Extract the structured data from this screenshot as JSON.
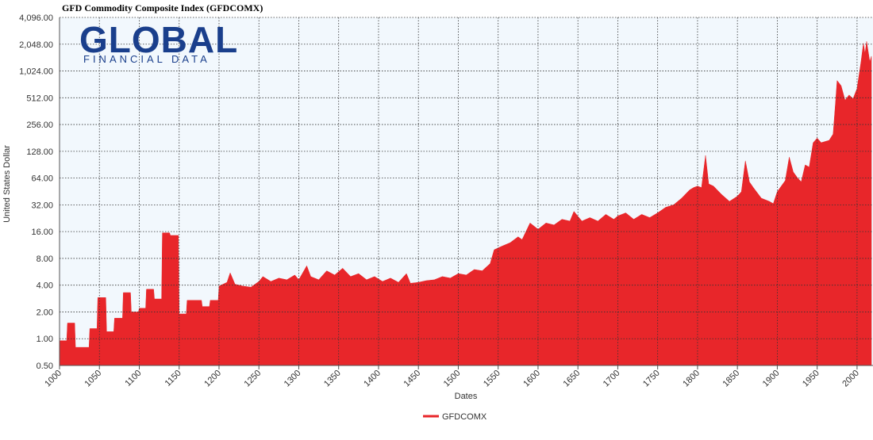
{
  "logo": {
    "name": "GLOBAL",
    "subtitle": "FINANCIAL DATA"
  },
  "chart_data": {
    "type": "area",
    "title": "GFD Commodity Composite Index (GFDCOMX)",
    "x_label": "Dates",
    "y_label": "United States Dollar",
    "log_scale": "y",
    "grid": true,
    "legend": "bottom",
    "xlim": [
      1000,
      2020
    ],
    "xticks": [
      1000,
      1050,
      1100,
      1150,
      1200,
      1250,
      1300,
      1350,
      1400,
      1450,
      1500,
      1550,
      1600,
      1650,
      1700,
      1750,
      1800,
      1850,
      1900,
      1950,
      2000
    ],
    "ylim": [
      0.5,
      4096
    ],
    "yticks": [
      {
        "value": 0.5,
        "label": "0.50"
      },
      {
        "value": 1,
        "label": "1.00"
      },
      {
        "value": 2,
        "label": "2.00"
      },
      {
        "value": 4,
        "label": "4.00"
      },
      {
        "value": 8,
        "label": "8.00"
      },
      {
        "value": 16,
        "label": "16.00"
      },
      {
        "value": 32,
        "label": "32.00"
      },
      {
        "value": 64,
        "label": "64.00"
      },
      {
        "value": 128,
        "label": "128.00"
      },
      {
        "value": 256,
        "label": "256.00"
      },
      {
        "value": 512,
        "label": "512.00"
      },
      {
        "value": 1024,
        "label": "1,024.00"
      },
      {
        "value": 2048,
        "label": "2,048.00"
      },
      {
        "value": 4096,
        "label": "4,096.00"
      }
    ],
    "series": [
      {
        "name": "GFDCOMX",
        "color": "#e8262a",
        "x": [
          1000,
          1009,
          1010,
          1019,
          1020,
          1037,
          1038,
          1047,
          1048,
          1058,
          1059,
          1068,
          1069,
          1079,
          1080,
          1089,
          1090,
          1099,
          1100,
          1108,
          1109,
          1118,
          1119,
          1128,
          1129,
          1138,
          1139,
          1149,
          1150,
          1159,
          1160,
          1178,
          1179,
          1188,
          1189,
          1199,
          1200,
          1210,
          1214,
          1220,
          1230,
          1240,
          1250,
          1255,
          1265,
          1275,
          1285,
          1295,
          1300,
          1310,
          1315,
          1325,
          1335,
          1345,
          1355,
          1365,
          1375,
          1385,
          1395,
          1405,
          1415,
          1425,
          1435,
          1440,
          1450,
          1460,
          1470,
          1480,
          1490,
          1500,
          1510,
          1520,
          1530,
          1540,
          1545,
          1555,
          1565,
          1575,
          1580,
          1590,
          1600,
          1610,
          1620,
          1630,
          1640,
          1645,
          1655,
          1665,
          1675,
          1685,
          1695,
          1700,
          1710,
          1720,
          1730,
          1740,
          1750,
          1760,
          1770,
          1780,
          1790,
          1795,
          1800,
          1805,
          1810,
          1814,
          1820,
          1830,
          1840,
          1850,
          1855,
          1860,
          1865,
          1870,
          1880,
          1890,
          1895,
          1900,
          1910,
          1915,
          1920,
          1925,
          1930,
          1935,
          1940,
          1945,
          1950,
          1955,
          1960,
          1965,
          1970,
          1973,
          1975,
          1980,
          1985,
          1990,
          1995,
          2000,
          2005,
          2008,
          2010,
          2012,
          2016,
          2018
        ],
        "values": [
          0.95,
          0.95,
          1.5,
          1.5,
          0.8,
          0.8,
          1.3,
          1.3,
          2.9,
          2.9,
          1.2,
          1.2,
          1.7,
          1.7,
          3.3,
          3.3,
          2.0,
          2.0,
          2.2,
          2.2,
          3.6,
          3.6,
          2.8,
          2.8,
          15.5,
          15.5,
          14.5,
          14.5,
          1.9,
          1.9,
          2.7,
          2.7,
          2.3,
          2.3,
          2.7,
          2.7,
          3.9,
          4.3,
          5.5,
          4.1,
          3.9,
          3.8,
          4.4,
          5.0,
          4.4,
          4.8,
          4.6,
          5.2,
          4.6,
          6.6,
          5.0,
          4.6,
          5.8,
          5.2,
          6.2,
          5.0,
          5.4,
          4.6,
          5.0,
          4.4,
          4.8,
          4.3,
          5.4,
          4.2,
          4.3,
          4.5,
          4.6,
          5.0,
          4.8,
          5.4,
          5.2,
          6.0,
          5.8,
          7.0,
          10,
          11,
          12,
          14,
          13,
          20,
          17,
          20,
          19,
          22,
          21,
          27,
          21,
          23,
          21,
          25,
          22,
          24,
          26,
          22,
          25,
          23,
          26,
          30,
          32,
          38,
          47,
          50,
          52,
          50,
          115,
          55,
          52,
          42,
          35,
          40,
          45,
          100,
          58,
          50,
          38,
          35,
          33,
          45,
          60,
          110,
          75,
          65,
          58,
          90,
          85,
          160,
          180,
          160,
          165,
          170,
          200,
          450,
          800,
          700,
          480,
          550,
          500,
          650,
          1300,
          2100,
          1600,
          2200,
          1300,
          1500
        ]
      }
    ]
  }
}
